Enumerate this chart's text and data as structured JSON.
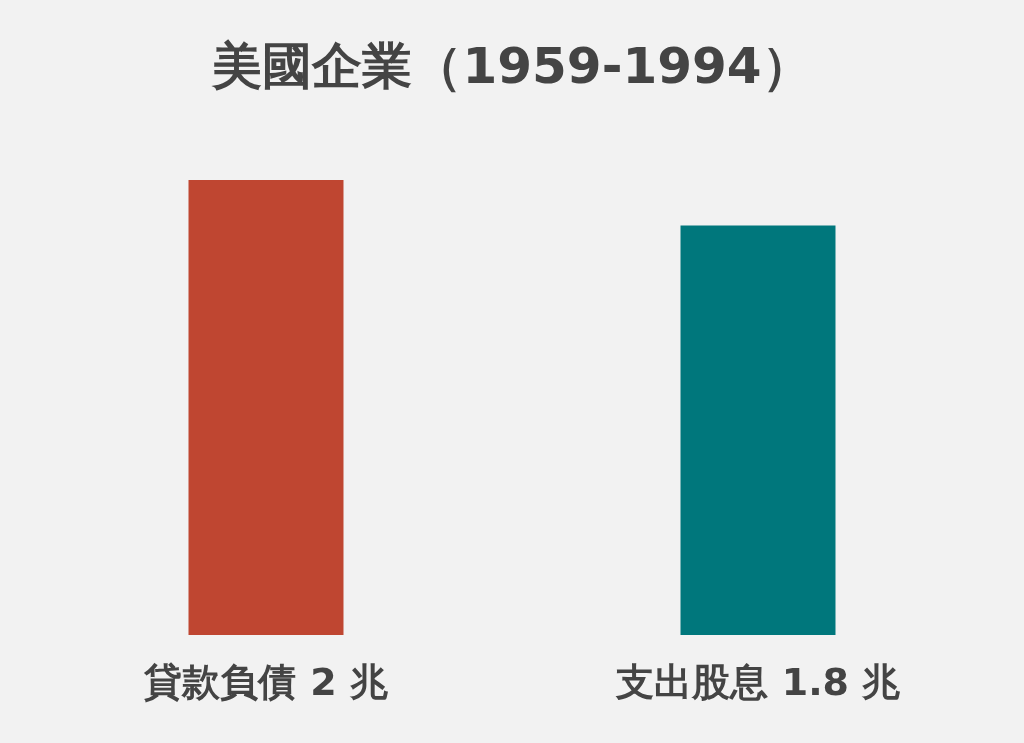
{
  "chart_data": {
    "type": "bar",
    "title": "美國企業（1959-1994）",
    "categories": [
      "貸款負債",
      "支出股息"
    ],
    "values": [
      2,
      1.8
    ],
    "value_labels": [
      "2 兆",
      "1.8 兆"
    ],
    "colors": [
      "#bf4631",
      "#00777c"
    ]
  }
}
